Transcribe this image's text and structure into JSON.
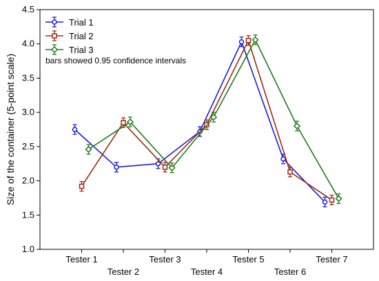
{
  "chart_data": {
    "type": "line",
    "title": "",
    "xlabel": "",
    "ylabel": "Size of the container (5-point scale)",
    "ylim": [
      1.0,
      4.5
    ],
    "yticks": [
      "1.0",
      "1.5",
      "2.0",
      "2.5",
      "3.0",
      "3.5",
      "4.0",
      "4.5"
    ],
    "categories": [
      "Tester 1",
      "Tester 2",
      "Tester 3",
      "Tester 4",
      "Tester 5",
      "Tester 6",
      "Tester 7"
    ],
    "grid": false,
    "legend_position": "top-left",
    "note": "bars showed 0.95 confidence intervals",
    "series": [
      {
        "name": "Trial 1",
        "color": "#1a1adb",
        "marker": "circle",
        "values": [
          2.75,
          2.2,
          2.25,
          2.72,
          4.03,
          2.32,
          1.69
        ],
        "ci_low": [
          2.68,
          2.13,
          2.18,
          2.65,
          3.96,
          2.25,
          1.62
        ],
        "ci_high": [
          2.82,
          2.27,
          2.32,
          2.79,
          4.1,
          2.39,
          1.76
        ]
      },
      {
        "name": "Trial 2",
        "color": "#9c2a12",
        "marker": "square",
        "values": [
          1.92,
          2.85,
          2.2,
          2.82,
          4.05,
          2.13,
          1.72
        ],
        "ci_low": [
          1.85,
          2.78,
          2.13,
          2.75,
          3.98,
          2.06,
          1.65
        ],
        "ci_high": [
          1.99,
          2.92,
          2.27,
          2.89,
          4.12,
          2.2,
          1.79
        ]
      },
      {
        "name": "Trial 3",
        "color": "#1d7a1d",
        "marker": "diamond",
        "values": [
          2.46,
          2.86,
          2.19,
          2.93,
          4.06,
          2.8,
          1.74
        ],
        "ci_low": [
          2.39,
          2.79,
          2.12,
          2.86,
          3.99,
          2.73,
          1.67
        ],
        "ci_high": [
          2.53,
          2.93,
          2.26,
          3.0,
          4.13,
          2.87,
          1.81
        ]
      }
    ]
  }
}
